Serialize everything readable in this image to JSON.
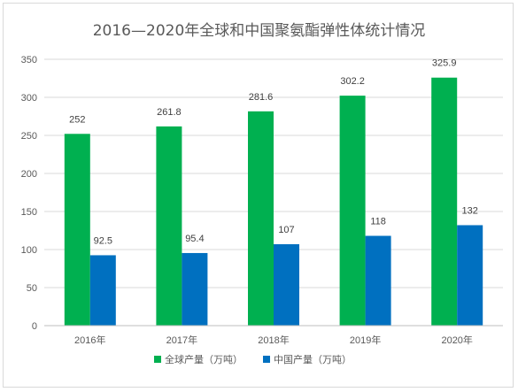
{
  "chart_data": {
    "type": "bar",
    "title": "2016—2020年全球和中国聚氨酯弹性体统计情况",
    "categories": [
      "2016年",
      "2017年",
      "2018年",
      "2019年",
      "2020年"
    ],
    "series": [
      {
        "name": "全球产量（万吨）",
        "values": [
          252,
          261.8,
          281.6,
          302.2,
          325.9
        ],
        "labels": [
          "252",
          "261.8",
          "281.6",
          "302.2",
          "325.9"
        ],
        "color": "#00b050"
      },
      {
        "name": "中国产量（万吨）",
        "values": [
          92.5,
          95.4,
          107,
          118,
          132
        ],
        "labels": [
          "92.5",
          "95.4",
          "107",
          "118",
          "132"
        ],
        "color": "#0070c0"
      }
    ],
    "ylim": [
      0,
      350
    ],
    "yticks": [
      0,
      50,
      100,
      150,
      200,
      250,
      300,
      350
    ],
    "grid": true,
    "legend": "bottom"
  }
}
